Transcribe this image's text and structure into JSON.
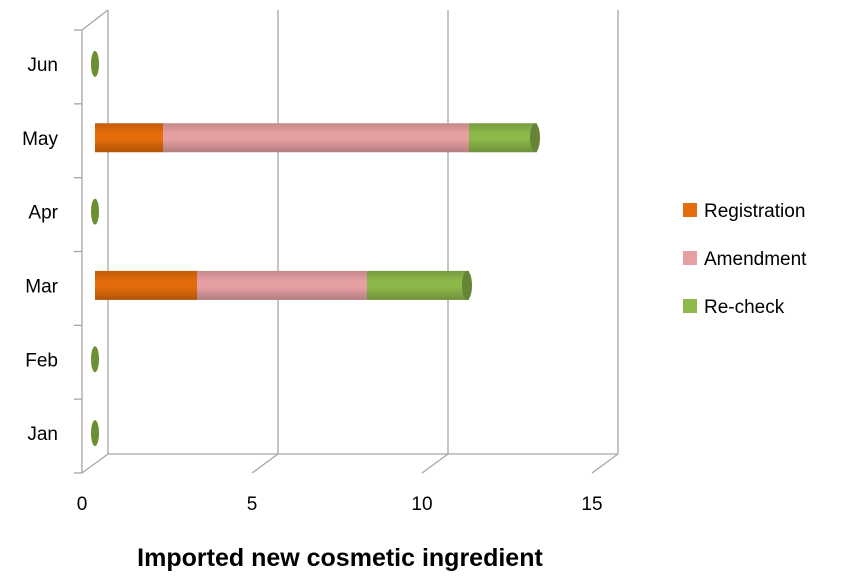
{
  "chart_data": {
    "type": "bar",
    "orientation": "horizontal",
    "stacked": true,
    "style": "3d-cylinder",
    "categories": [
      "Jan",
      "Feb",
      "Mar",
      "Apr",
      "May",
      "Jun"
    ],
    "series": [
      {
        "name": "Registration",
        "color": "#E46C0A",
        "values": [
          0,
          0,
          3,
          0,
          2,
          0
        ]
      },
      {
        "name": "Amendment",
        "color": "#E6A0A3",
        "values": [
          0,
          0,
          5,
          0,
          9,
          0
        ]
      },
      {
        "name": "Re-check",
        "color": "#8DB84A",
        "values": [
          0,
          0,
          3,
          0,
          2,
          0
        ]
      }
    ],
    "xlim": [
      0,
      15
    ],
    "xticks": [
      "0",
      "5",
      "10",
      "15"
    ],
    "title": "",
    "xlabel": "Imported new cosmetic ingredient",
    "ylabel": "",
    "grid": true,
    "legend_position": "right"
  }
}
